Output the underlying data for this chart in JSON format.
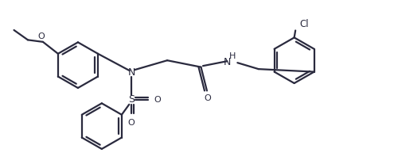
{
  "bg_color": "#ffffff",
  "line_color": "#2a2a3e",
  "line_width": 1.6,
  "fig_width": 4.95,
  "fig_height": 2.12,
  "dpi": 100,
  "xlim": [
    0,
    9.9
  ],
  "ylim": [
    0,
    4.24
  ]
}
